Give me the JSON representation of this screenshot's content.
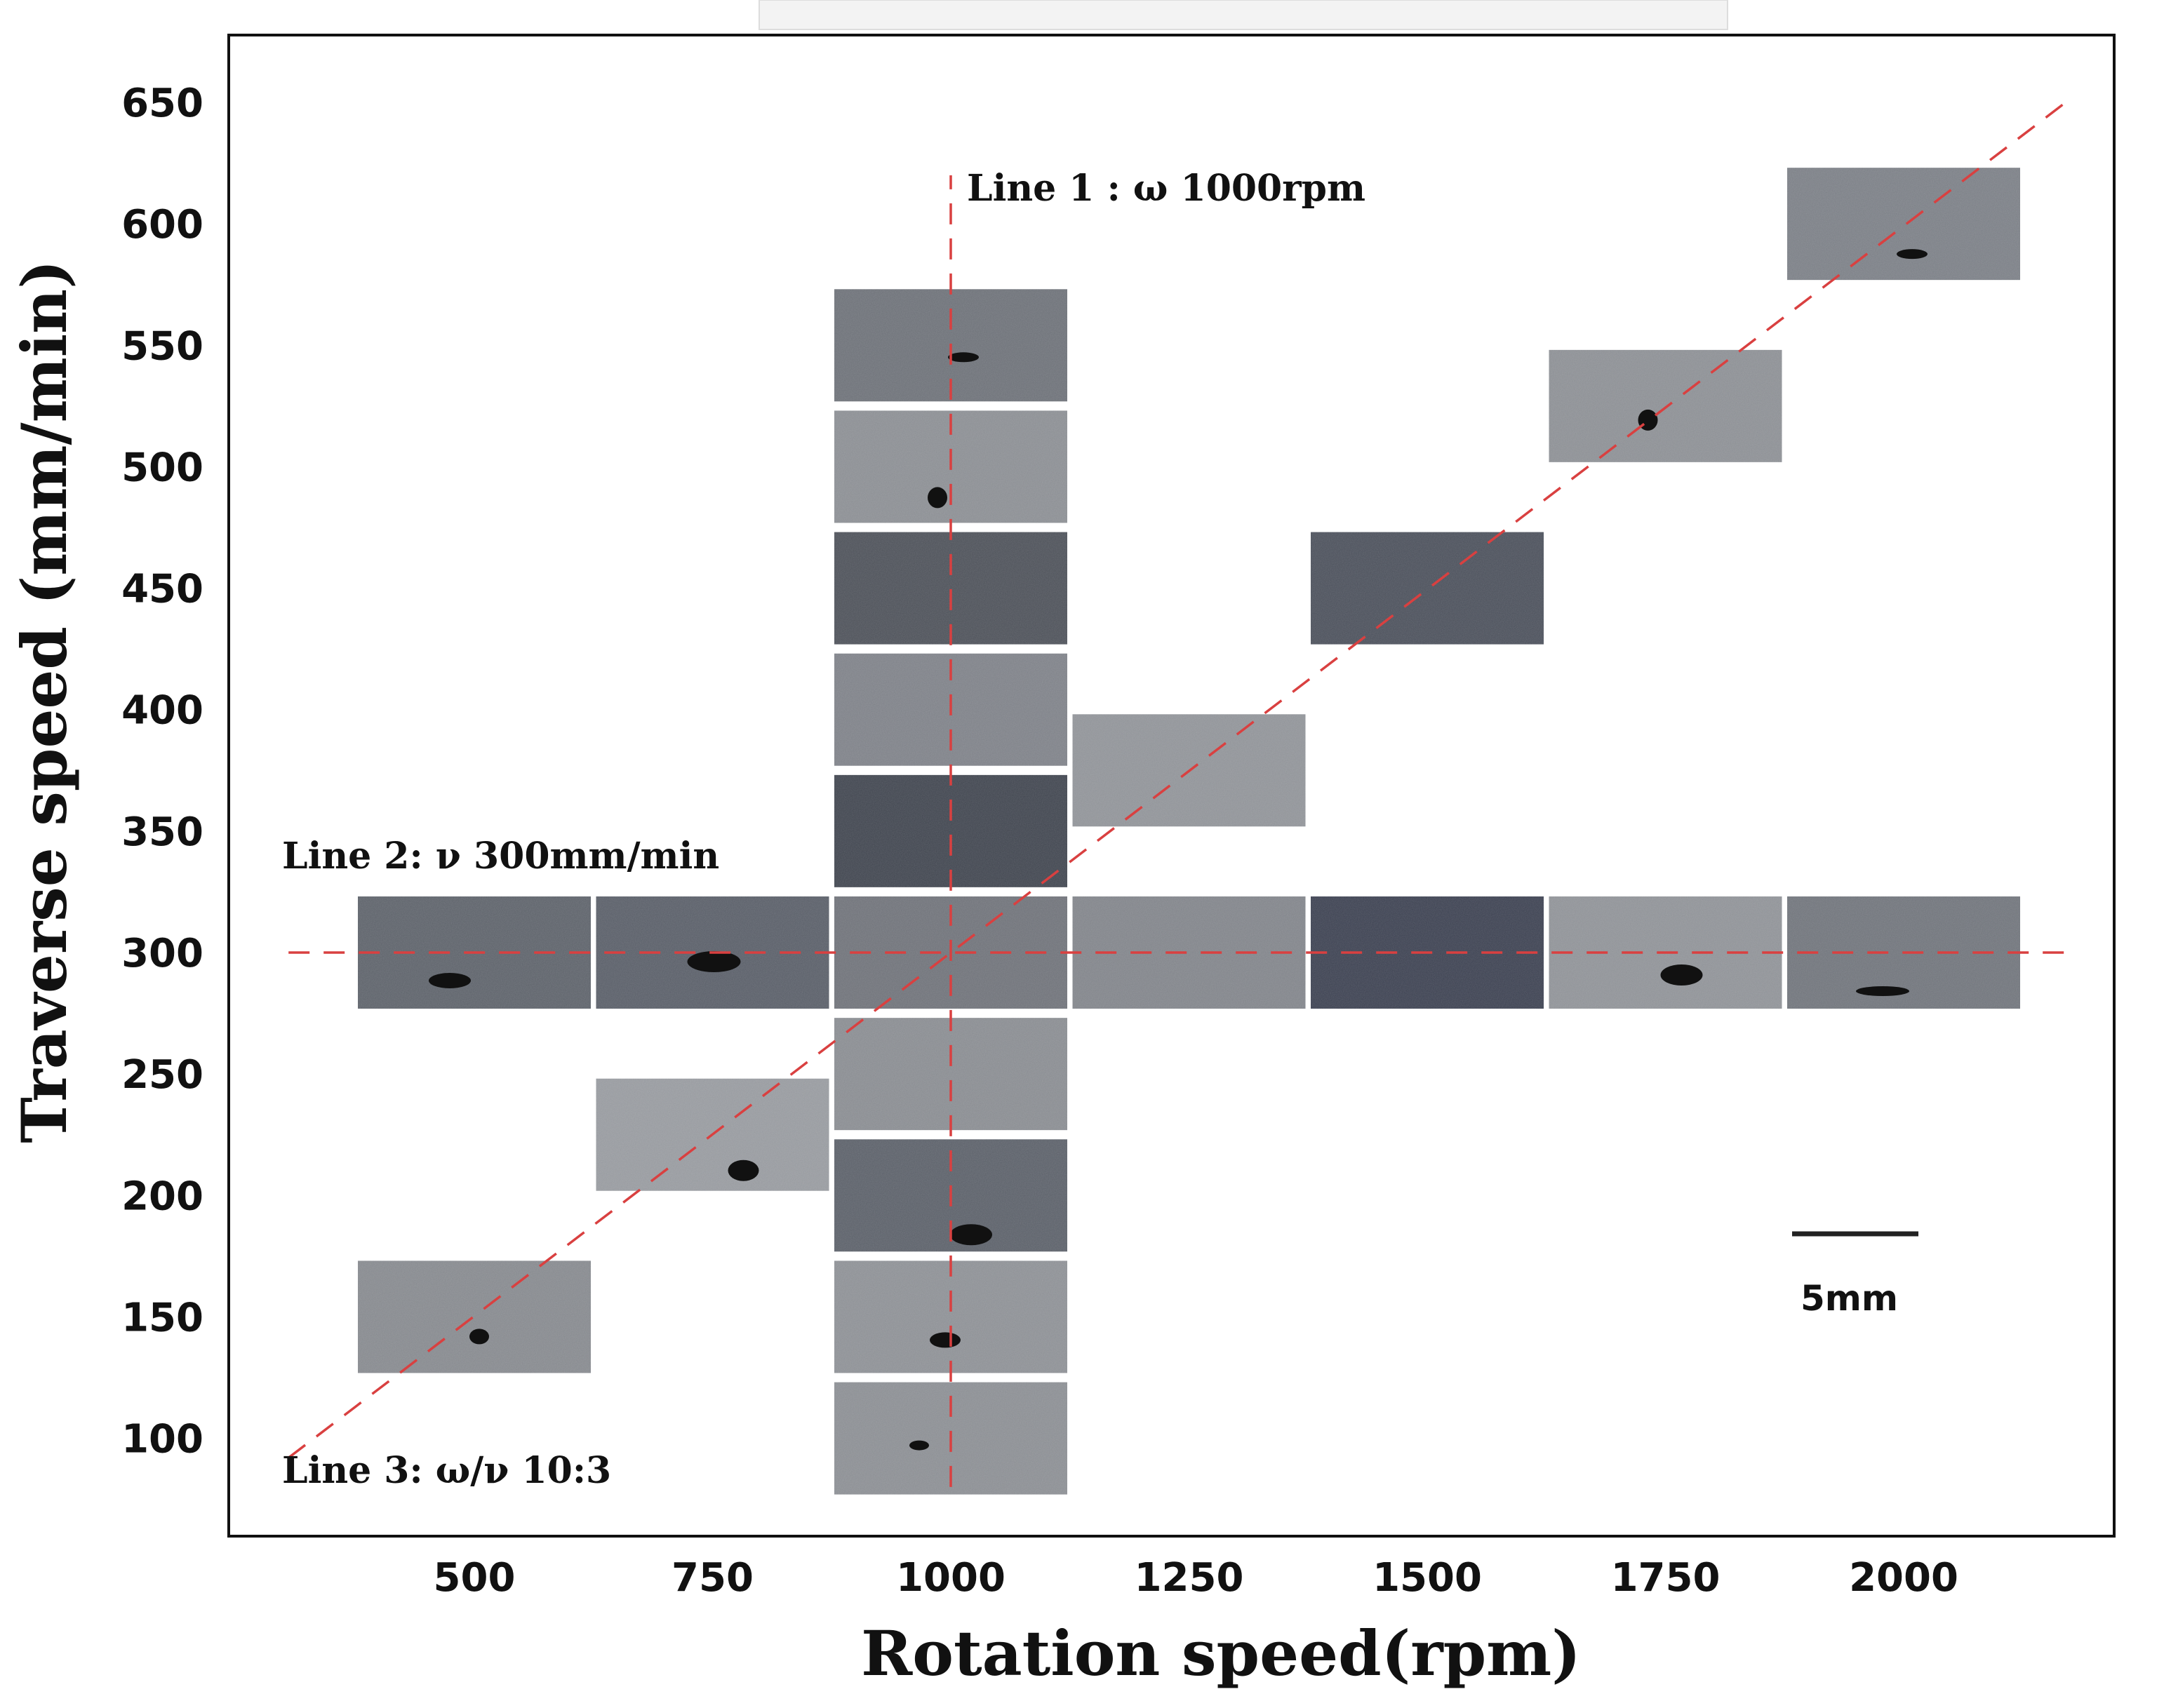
{
  "chart_data": {
    "type": "scatter",
    "xlabel": "Rotation speed(rpm)",
    "ylabel": "Traverse speed (mm/min)",
    "xlim": [
      250,
      2250
    ],
    "ylim": [
      55,
      680
    ],
    "xticks": [
      "500",
      "750",
      "1000",
      "1250",
      "1500",
      "1750",
      "2000"
    ],
    "yticks": [
      "100",
      "150",
      "200",
      "250",
      "300",
      "350",
      "400",
      "450",
      "500",
      "550",
      "600",
      "650"
    ],
    "lines": [
      {
        "label": "Line 1 : ω 1000rpm",
        "points": [
          [
            1000,
            80
          ],
          [
            1000,
            620
          ]
        ]
      },
      {
        "label": "Line 2: ν  300mm/min",
        "points": [
          [
            305,
            300
          ],
          [
            2180,
            300
          ]
        ]
      },
      {
        "label": "Line 3: ω/ν 10:3",
        "points": [
          [
            305,
            92
          ],
          [
            2170,
            650
          ]
        ]
      }
    ],
    "samples": [
      {
        "x": 1000,
        "y": 100,
        "tone": "#8a8d92",
        "defect": true
      },
      {
        "x": 1000,
        "y": 150,
        "tone": "#8c8f94",
        "defect": true
      },
      {
        "x": 1000,
        "y": 200,
        "tone": "#5a5f68",
        "defect": true
      },
      {
        "x": 1000,
        "y": 250,
        "tone": "#888b90",
        "defect": false
      },
      {
        "x": 1000,
        "y": 300,
        "tone": "#6e7178",
        "defect": false
      },
      {
        "x": 1000,
        "y": 350,
        "tone": "#3f444e",
        "defect": false
      },
      {
        "x": 1000,
        "y": 400,
        "tone": "#7d8087",
        "defect": false
      },
      {
        "x": 1000,
        "y": 450,
        "tone": "#4c5058",
        "defect": false
      },
      {
        "x": 1000,
        "y": 500,
        "tone": "#8a8d92",
        "defect": true
      },
      {
        "x": 1000,
        "y": 550,
        "tone": "#6c7077",
        "defect": true
      },
      {
        "x": 500,
        "y": 300,
        "tone": "#5c6169",
        "defect": true
      },
      {
        "x": 750,
        "y": 300,
        "tone": "#585d67",
        "defect": true
      },
      {
        "x": 1250,
        "y": 300,
        "tone": "#808389",
        "defect": false
      },
      {
        "x": 1500,
        "y": 300,
        "tone": "#3b4050",
        "defect": false
      },
      {
        "x": 1750,
        "y": 300,
        "tone": "#8e9196",
        "defect": true
      },
      {
        "x": 2000,
        "y": 300,
        "tone": "#6f737a",
        "defect": true
      },
      {
        "x": 500,
        "y": 150,
        "tone": "#85888d",
        "defect": true
      },
      {
        "x": 750,
        "y": 225,
        "tone": "#96999e",
        "defect": true
      },
      {
        "x": 1250,
        "y": 375,
        "tone": "#8f9297",
        "defect": false
      },
      {
        "x": 1500,
        "y": 450,
        "tone": "#4a4f5a",
        "defect": false
      },
      {
        "x": 1750,
        "y": 525,
        "tone": "#8b8e93",
        "defect": true
      },
      {
        "x": 2000,
        "y": 600,
        "tone": "#7a7e85",
        "defect": true
      }
    ],
    "scale_bar": {
      "label": "5mm"
    },
    "grid": false
  }
}
